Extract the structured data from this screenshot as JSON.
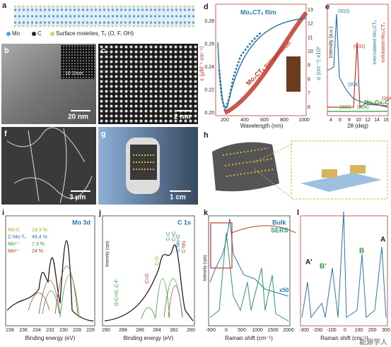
{
  "panels": {
    "a": {
      "label": "a",
      "legend": [
        "Mo",
        "C",
        "Surface moieties, Tₓ (O, F, OH)"
      ]
    },
    "b": {
      "label": "b",
      "scale": "20 nm",
      "inset_scale": "10 1/nm"
    },
    "c": {
      "label": "c",
      "scale": "2 nm"
    },
    "d": {
      "label": "d",
      "film": "Mo₂CTₓ film",
      "suspension": "Mo₂CTₓ suspension",
      "ylabel": "ε (μM⁻¹ cm⁻¹)",
      "y2label": "α (cm⁻¹) x10²",
      "xlabel": "Wavelength (nm)",
      "yticks": [
        "0.20",
        "0.22",
        "0.24",
        "0.26",
        "0.28"
      ],
      "y2ticks": [
        "6",
        "7",
        "8",
        "9",
        "10",
        "11",
        "12",
        "13"
      ],
      "xticks": [
        "200",
        "400",
        "600",
        "800",
        "1000"
      ]
    },
    "e": {
      "label": "e",
      "ylabel": "Intensity (a.u.)",
      "xlabel": "2θ (deg)",
      "xticks": [
        "4",
        "6",
        "8",
        "10",
        "12",
        "14",
        "16"
      ],
      "peaks": [
        "(002)",
        "(004)",
        "(002)",
        "(004)",
        "(002)",
        "(004)"
      ],
      "intercalated": "intercalated-Mo₂CTₓ",
      "exfoliated": "exfoliated-Mo₂CTₓ",
      "mo2ga2c": "Mo₂Ga₂C"
    },
    "f": {
      "label": "f",
      "scale": "3 μm"
    },
    "g": {
      "label": "g",
      "scale": "1 cm"
    },
    "h": {
      "label": "h"
    },
    "i": {
      "label": "i",
      "title": "Mo 3d",
      "ylabel": "Intensity (cps)",
      "xlabel": "Binding energy (eV)",
      "xticks": [
        "238",
        "236",
        "234",
        "232",
        "230",
        "228",
        "226"
      ],
      "legend": [
        [
          "Mo-C",
          "19.3 %"
        ],
        [
          "C-Mo-Tₓ",
          "49.4 %"
        ],
        [
          "Mo⁵⁺",
          "7.3 %"
        ],
        [
          "Mo⁶⁺",
          "24 %"
        ]
      ]
    },
    "j": {
      "label": "j",
      "title": "C 1s",
      "ylabel": "Intensity (cps)",
      "xlabel": "Binding energy (eV)",
      "xticks": [
        "290",
        "288",
        "286",
        "284",
        "282",
        "280"
      ],
      "peaks": [
        "C=O",
        "C-O",
        "C-C",
        "C=C",
        "C-Mo-O",
        "C-Mo",
        "O-C=O, C-F"
      ]
    },
    "k": {
      "label": "k",
      "bulk": "Bulk",
      "sers": "SERS",
      "factor": "x50",
      "ylabel": "Intensity (cps)",
      "xlabel": "Raman shift (cm⁻¹)",
      "xticks": [
        "-500",
        "0",
        "500",
        "1000",
        "1500",
        "2000"
      ]
    },
    "l": {
      "label": "l",
      "xlabel": "Raman shift (cm⁻¹)",
      "xticks": [
        "-300",
        "-200",
        "-100",
        "0",
        "100",
        "200",
        "300"
      ],
      "modes": [
        "A'",
        "B'",
        "B",
        "A"
      ]
    }
  },
  "watermark": "能源学人"
}
